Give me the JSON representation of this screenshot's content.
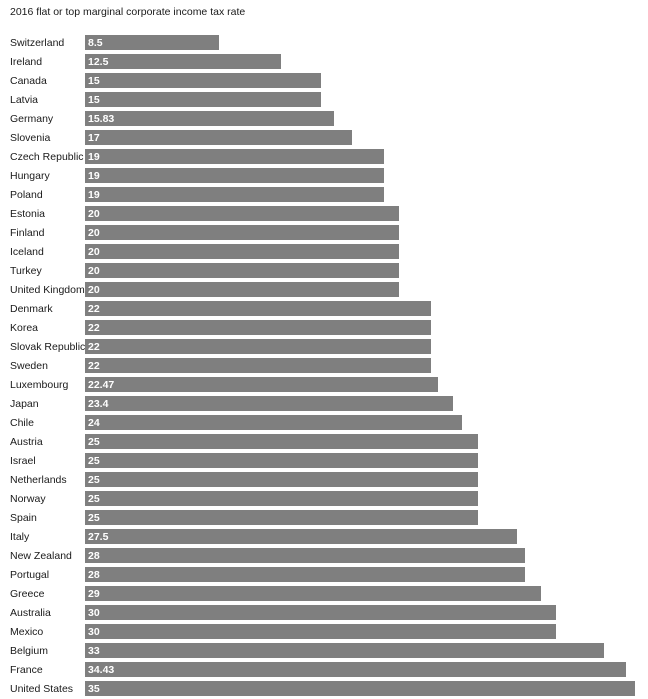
{
  "chart_data": {
    "type": "bar",
    "orientation": "horizontal",
    "title": "2016 flat or top marginal corporate income tax rate",
    "categories": [
      "Switzerland",
      "Ireland",
      "Canada",
      "Latvia",
      "Germany",
      "Slovenia",
      "Czech Republic",
      "Hungary",
      "Poland",
      "Estonia",
      "Finland",
      "Iceland",
      "Turkey",
      "United Kingdom",
      "Denmark",
      "Korea",
      "Slovak Republic",
      "Sweden",
      "Luxembourg",
      "Japan",
      "Chile",
      "Austria",
      "Israel",
      "Netherlands",
      "Norway",
      "Spain",
      "Italy",
      "New Zealand",
      "Portugal",
      "Greece",
      "Australia",
      "Mexico",
      "Belgium",
      "France",
      "United States"
    ],
    "values": [
      8.5,
      12.5,
      15,
      15,
      15.83,
      17,
      19,
      19,
      19,
      20,
      20,
      20,
      20,
      20,
      22,
      22,
      22,
      22,
      22.47,
      23.4,
      24,
      25,
      25,
      25,
      25,
      25,
      27.5,
      28,
      28,
      29,
      30,
      30,
      33,
      34.43,
      35
    ],
    "xlim": [
      0,
      35
    ],
    "grid": false,
    "legend": "none",
    "bar_color": "#7f7f7f",
    "value_label_color": "#ffffff",
    "category_label_color": "#1a1a1a"
  }
}
